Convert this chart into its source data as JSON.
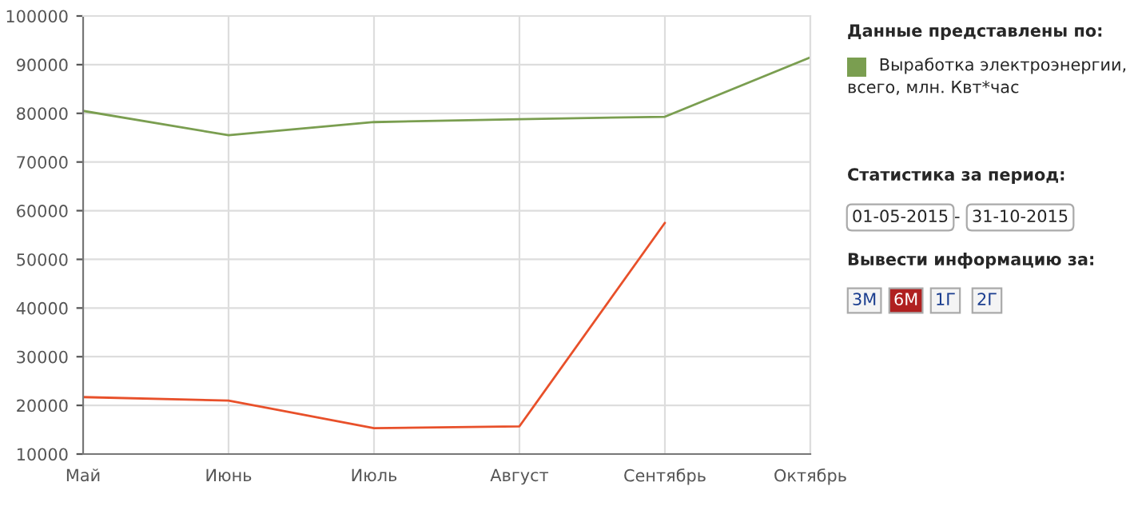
{
  "chart_data": {
    "type": "line",
    "categories": [
      "Май",
      "Июнь",
      "Июль",
      "Август",
      "Сентябрь",
      "Октябрь"
    ],
    "series": [
      {
        "name": "Выработка электроэнергии, всего, млн. Квт*час",
        "color": "#7a9e50",
        "values": [
          80500,
          75500,
          78200,
          78800,
          79300,
          91500
        ]
      },
      {
        "color": "#e8502a",
        "values": [
          21700,
          21000,
          15300,
          15700,
          57500,
          null
        ]
      }
    ],
    "ylim": [
      10000,
      100000
    ],
    "yticks": [
      10000,
      20000,
      30000,
      40000,
      50000,
      60000,
      70000,
      80000,
      90000,
      100000
    ],
    "grid": true,
    "legend": "top right",
    "marker": "none",
    "line_style": "solid",
    "legend_title": "Данные представлены по:",
    "annotations": [
      "Статистика за период:",
      "01-05-2015",
      "-",
      "31-10-2015",
      "Вывести информацию за:",
      "3М",
      "6М",
      "1Г",
      "2Г"
    ]
  }
}
